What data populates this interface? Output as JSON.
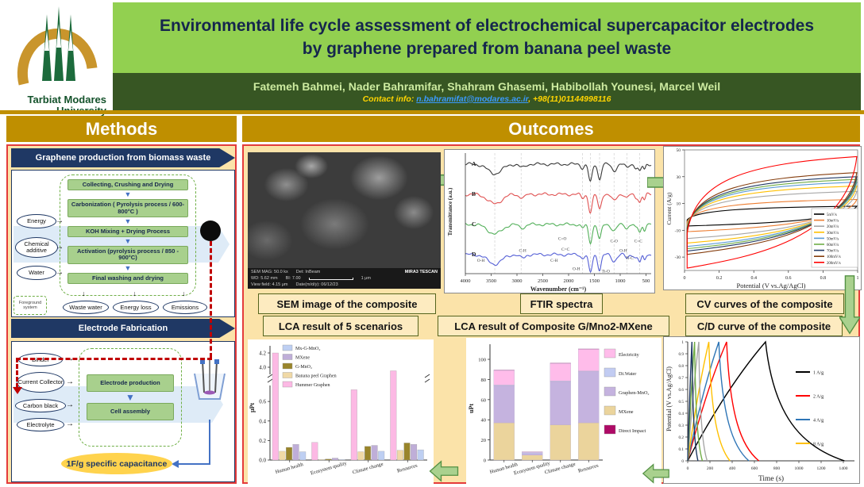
{
  "icons": {
    "arrow_right": "→",
    "arrow_down": "▼",
    "arrow_down_thin": "↓"
  },
  "header": {
    "logo_line1": "Tarbiat Modares",
    "logo_line2": "University",
    "title_line1": "Environmental life cycle assessment of electrochemical supercapacitor electrodes",
    "title_line2": "by graphene prepared from banana peel waste",
    "authors": "Fatemeh Bahmei, Nader Bahramifar, Shahram Ghasemi, Habibollah Younesi, Marcel Weil",
    "contact_prefix": "Contact info: ",
    "contact_email": "n.bahramifat@modares.ac.ir",
    "contact_phone": ", +98(11)01144998116"
  },
  "sections": {
    "methods": "Methods",
    "outcomes": "Outcomes"
  },
  "methods": {
    "flow1": {
      "banner": "Graphene production from biomass waste",
      "inputs": [
        "Energy",
        "Chemical additive",
        "Water"
      ],
      "steps": [
        "Collecting, Crushing and Drying",
        "Carbonization ( Pyrolysis process / 600-800°C )",
        "KOH Mixing + Drying Process",
        "Activation (pyrolysis process / 850 - 900°C)",
        "Final washing and drying"
      ],
      "outputs": [
        "Waste water",
        "Energy loss",
        "Emissions"
      ],
      "note": "Foreground system"
    },
    "flow2": {
      "banner": "Electrode Fabrication",
      "inputs": [
        "Binder",
        "Current Collector",
        "Carbon black",
        "Electrolyte"
      ],
      "steps": [
        "Electrode production",
        "Cell assembly"
      ],
      "result": "1F/g specific capacitance"
    }
  },
  "figure_labels": {
    "sem": "SEM image of the composite",
    "ftir": "FTIR spectra",
    "cv": "CV curves of the composite",
    "lca5": "LCA result of 5 scenarios",
    "lcac": "LCA result of Composite G/Mno2-MXene",
    "cd": "C/D curve of the composite"
  },
  "sem_meta": {
    "mag": "SEM MAG: 50.0 kx",
    "det": "Det: InBeam",
    "brand": "MIRA3 TESCAN",
    "wd": "WD: 5.62 mm",
    "bi": "BI: 7.00",
    "scale": "1 μm",
    "view": "View field: 4.15 μm",
    "date": "Date(m/d/y): 06/12/23"
  },
  "chart_data": [
    {
      "id": "ftir",
      "type": "line",
      "title": "FTIR spectra",
      "xlabel": "Wavenumber (cm⁻¹)",
      "ylabel": "Transmittance (a.u.)",
      "xlim": [
        4000,
        400
      ],
      "x_ticks": [
        4000,
        3500,
        3000,
        2500,
        2000,
        1500,
        1000,
        500
      ],
      "series": [
        {
          "name": "A",
          "color": "#3a3a3a"
        },
        {
          "name": "B",
          "color": "#e05252"
        },
        {
          "name": "C",
          "color": "#53b05a"
        },
        {
          "name": "D",
          "color": "#5560d6"
        }
      ],
      "dips": [
        [
          3430,
          190,
          0.5
        ],
        [
          2920,
          70,
          0.15
        ],
        [
          2850,
          45,
          0.09
        ],
        [
          1730,
          45,
          0.2
        ],
        [
          1578,
          48,
          0.95
        ],
        [
          1400,
          46,
          0.8
        ],
        [
          1120,
          65,
          0.35
        ],
        [
          870,
          45,
          0.2
        ],
        [
          700,
          40,
          0.18
        ],
        [
          620,
          40,
          0.4
        ],
        [
          530,
          30,
          0.28
        ]
      ],
      "annotations": [
        {
          "t": "O-H",
          "x": 3700,
          "fy": 0.9
        },
        {
          "t": "C-H",
          "x": 2890,
          "fy": 0.82
        },
        {
          "t": "C-H",
          "x": 2280,
          "fy": 0.9
        },
        {
          "t": "C=O",
          "x": 2120,
          "fy": 0.72
        },
        {
          "t": "C=C",
          "x": 2060,
          "fy": 0.81
        },
        {
          "t": "O-H",
          "x": 1850,
          "fy": 0.97
        },
        {
          "t": "Ti-O",
          "x": 1280,
          "fy": 0.99
        },
        {
          "t": "C-O",
          "x": 1120,
          "fy": 0.74
        },
        {
          "t": "O-H",
          "x": 940,
          "fy": 0.82
        },
        {
          "t": "Ti-C",
          "x": 820,
          "fy": 0.88
        },
        {
          "t": "C=C",
          "x": 650,
          "fy": 0.74
        }
      ]
    },
    {
      "id": "cv",
      "type": "line",
      "title": "CV curves of the composite",
      "xlabel": "Potential (V vs.Ag/AgCl)",
      "ylabel": "Current (A/g)",
      "xlim": [
        0,
        1
      ],
      "ylim": [
        -40,
        50
      ],
      "x_ticks": [
        0,
        0.2,
        0.4,
        0.6,
        0.8,
        1
      ],
      "y_ticks": [
        50,
        30,
        10,
        -10,
        -30
      ],
      "legend_position": "bottom-right",
      "series": [
        {
          "name": "5mV/s",
          "color": "#000000",
          "amp": 8
        },
        {
          "name": "10mV/s",
          "color": "#ED7D31",
          "amp": 13
        },
        {
          "name": "20mV/s",
          "color": "#A6A6A6",
          "amp": 19
        },
        {
          "name": "30mV/s",
          "color": "#FFC000",
          "amp": 23
        },
        {
          "name": "50mV/s",
          "color": "#5B9BD5",
          "amp": 26
        },
        {
          "name": "60mV/s",
          "color": "#70AD47",
          "amp": 28
        },
        {
          "name": "70mV/s",
          "color": "#203864",
          "amp": 30
        },
        {
          "name": "100mV/s",
          "color": "#843C0C",
          "amp": 33
        },
        {
          "name": "200mV/s",
          "color": "#FF0000",
          "amp": 45
        }
      ]
    },
    {
      "id": "lca5",
      "type": "bar",
      "title": "LCA result of 5 scenarios",
      "ylabel": "μPt",
      "categories": [
        "Human health",
        "Ecosystem quality",
        "Climate change",
        "Resources"
      ],
      "axis_break": true,
      "y_ticks_lower": [
        0,
        0.2,
        0.4,
        0.6
      ],
      "y_ticks_upper": [
        4,
        4.2
      ],
      "series": [
        {
          "name": "Hummer Graphen",
          "color": "#FCB9E4",
          "values": [
            4.2,
            0.18,
            0.72,
            3.95
          ]
        },
        {
          "name": "Banana peel Graphen",
          "color": "#F0D9A6",
          "values": [
            0.09,
            0.005,
            0.085,
            0.1
          ]
        },
        {
          "name": "G-MnO₂",
          "color": "#99852B",
          "values": [
            0.13,
            0.01,
            0.14,
            0.175
          ]
        },
        {
          "name": "MXene",
          "color": "#BFAED8",
          "values": [
            0.16,
            0.02,
            0.15,
            0.16
          ]
        },
        {
          "name": "Mx-G-MnO₂",
          "color": "#BECFF2",
          "values": [
            0.085,
            0.005,
            0.09,
            0.105
          ]
        }
      ],
      "legend_order": [
        "Mx-G-MnO₂",
        "MXene",
        "G-MnO₂",
        "Banana peel Graphen",
        "Hummer Graphen"
      ]
    },
    {
      "id": "lcac",
      "type": "stacked-bar",
      "title": "LCA result of Composite G/Mno2-MXene",
      "ylabel": "uPt",
      "categories": [
        "Human health",
        "Ecosystem quality",
        "Climate change",
        "Resources"
      ],
      "y_ticks": [
        0,
        20,
        40,
        60,
        80,
        100
      ],
      "stack": [
        {
          "name": "MXene",
          "color": "#EBD49C",
          "values": [
            37,
            5,
            35,
            37
          ]
        },
        {
          "name": "Graphen-MnO₂",
          "color": "#C5B3DF",
          "values": [
            37,
            1.5,
            43,
            51
          ]
        },
        {
          "name": "Di.Water",
          "color": "#C2CCF2",
          "values": [
            0.5,
            1,
            0.5,
            0.5
          ]
        },
        {
          "name": "Electricity",
          "color": "#FFBCEA",
          "values": [
            14.5,
            0.5,
            17.5,
            21.5
          ]
        },
        {
          "name": "Direct Impact",
          "color": "#AE0A66",
          "values": [
            0.4,
            0.2,
            0.4,
            0.4
          ]
        }
      ],
      "legend_order": [
        "Electricity",
        "Di.Water",
        "Graphen-MnO₂",
        "MXene",
        "Direct Impact"
      ]
    },
    {
      "id": "cd",
      "type": "line",
      "title": "C/D curve of the composite",
      "xlabel": "Time (s)",
      "ylabel": "Potential (V vs.Ag/AgCl)",
      "xlim": [
        0,
        1500
      ],
      "ylim": [
        0,
        1
      ],
      "x_ticks": [
        0,
        200,
        400,
        600,
        800,
        1000,
        1200,
        1400
      ],
      "legend": [
        "1 A/g",
        "2 A/g",
        "4 A/g",
        "8 A/g"
      ],
      "series": [
        {
          "name": "1 A/g",
          "color": "#000000",
          "peak": 700,
          "end": 1410
        },
        {
          "name": "2 A/g",
          "color": "#FF0000",
          "peak": 350,
          "end": 640
        },
        {
          "name": "4 A/g",
          "color": "#2E75B6",
          "peak": 280,
          "end": 550
        },
        {
          "name": "8 A/g",
          "color": "#FFC000",
          "peak": 190,
          "end": 380
        },
        {
          "name": "",
          "color": "#A6A6A6",
          "peak": 100,
          "end": 175
        },
        {
          "name": "",
          "color": "#70AD47",
          "peak": 62,
          "end": 132
        },
        {
          "name": "",
          "color": "#203864",
          "peak": 38,
          "end": 92
        }
      ]
    }
  ]
}
